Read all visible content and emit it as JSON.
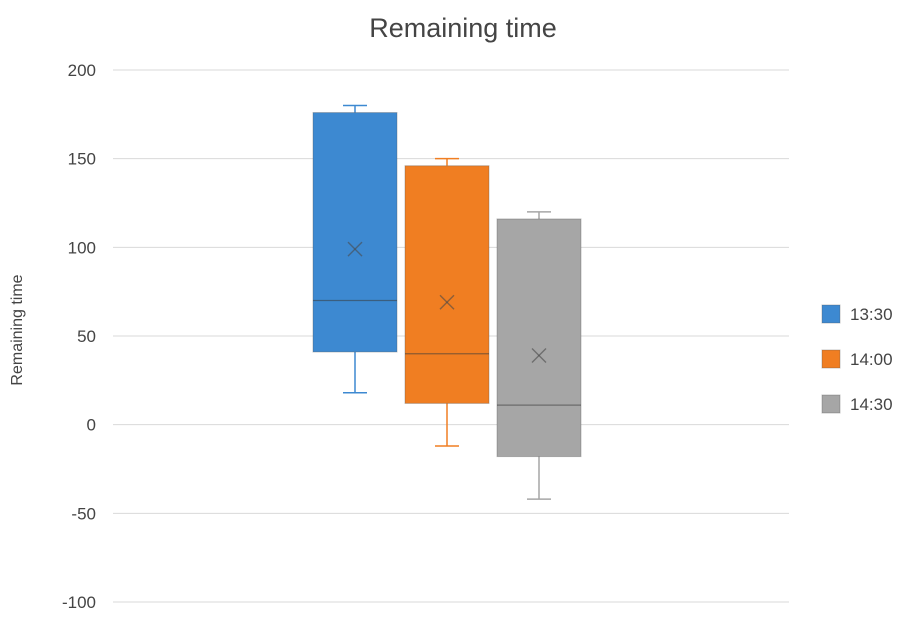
{
  "chart_data": {
    "type": "box",
    "title": "Remaining time",
    "xlabel": "",
    "ylabel": "Remaining time",
    "ylim": [
      -100,
      200
    ],
    "yticks": [
      -100,
      -50,
      0,
      50,
      100,
      150,
      200
    ],
    "grid": true,
    "legend_position": "right",
    "series": [
      {
        "name": "13:30",
        "color": "#3d89d1",
        "min": 18,
        "q1": 41,
        "median": 70,
        "q3": 176,
        "max": 180,
        "mean": 99
      },
      {
        "name": "14:00",
        "color": "#f07e22",
        "min": -12,
        "q1": 12,
        "median": 40,
        "q3": 146,
        "max": 150,
        "mean": 69
      },
      {
        "name": "14:30",
        "color": "#a6a6a6",
        "min": -42,
        "q1": -18,
        "median": 11,
        "q3": 116,
        "max": 120,
        "mean": 39
      }
    ]
  }
}
